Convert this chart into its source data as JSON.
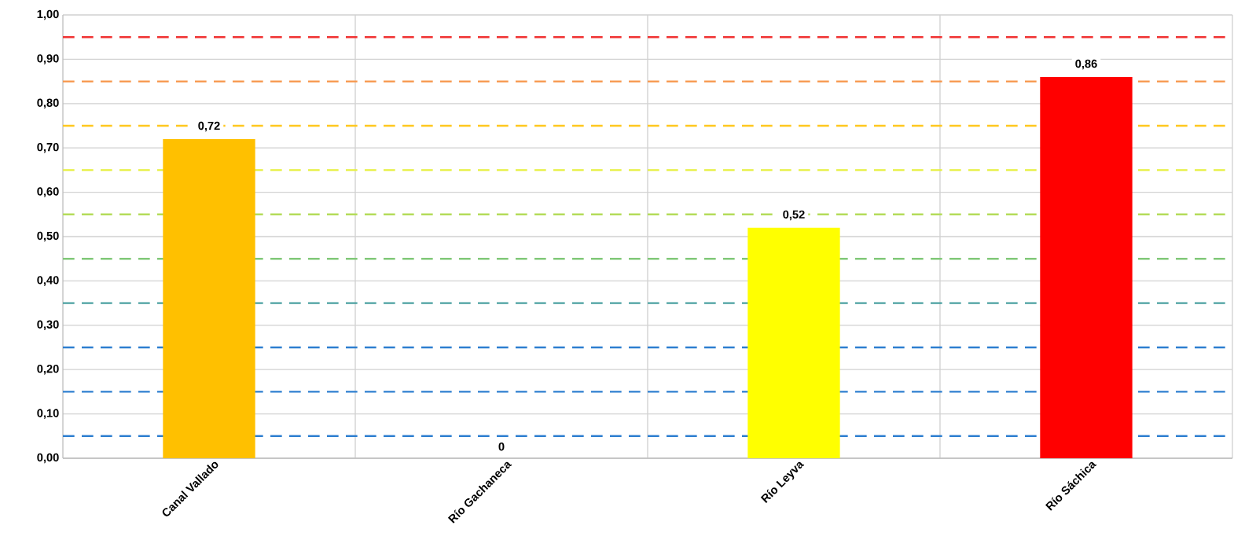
{
  "chart_data": {
    "type": "bar",
    "categories": [
      "Canal Vallado",
      "Río Gachaneca",
      "Río Leyva",
      "Río Sáchica"
    ],
    "values": [
      0.72,
      0,
      0.52,
      0.86
    ],
    "colors": [
      "#ffc000",
      "#ffc000",
      "#ffff00",
      "#ff0000"
    ],
    "value_labels": [
      "0,72",
      "0",
      "0,52",
      "0,86"
    ],
    "ylim": [
      0,
      1
    ],
    "yticks": [
      {
        "value": 0,
        "label": "0,00"
      },
      {
        "value": 0.1,
        "label": "0,10"
      },
      {
        "value": 0.2,
        "label": "0,20"
      },
      {
        "value": 0.3,
        "label": "0,30"
      },
      {
        "value": 0.4,
        "label": "0,40"
      },
      {
        "value": 0.5,
        "label": "0,50"
      },
      {
        "value": 0.6,
        "label": "0,60"
      },
      {
        "value": 0.7,
        "label": "0,70"
      },
      {
        "value": 0.8,
        "label": "0,80"
      },
      {
        "value": 0.9,
        "label": "0,90"
      },
      {
        "value": 1,
        "label": "1,00"
      }
    ],
    "grid": true,
    "ref_lines": [
      {
        "axis": "y",
        "value": 0.05,
        "color": "#2e7fd0",
        "line_style": "dashed"
      },
      {
        "axis": "y",
        "value": 0.15,
        "color": "#2e7fd0",
        "line_style": "dashed"
      },
      {
        "axis": "y",
        "value": 0.25,
        "color": "#2e7fd0",
        "line_style": "dashed"
      },
      {
        "axis": "y",
        "value": 0.35,
        "color": "#4aa0a0",
        "line_style": "dashed"
      },
      {
        "axis": "y",
        "value": 0.45,
        "color": "#80c878",
        "line_style": "dashed"
      },
      {
        "axis": "y",
        "value": 0.55,
        "color": "#b4dc5a",
        "line_style": "dashed"
      },
      {
        "axis": "y",
        "value": 0.65,
        "color": "#e6f03c",
        "line_style": "dashed"
      },
      {
        "axis": "y",
        "value": 0.75,
        "color": "#ffc820",
        "line_style": "dashed"
      },
      {
        "axis": "y",
        "value": 0.85,
        "color": "#f7964a",
        "line_style": "dashed"
      },
      {
        "axis": "y",
        "value": 0.95,
        "color": "#f03232",
        "line_style": "dashed"
      }
    ]
  }
}
